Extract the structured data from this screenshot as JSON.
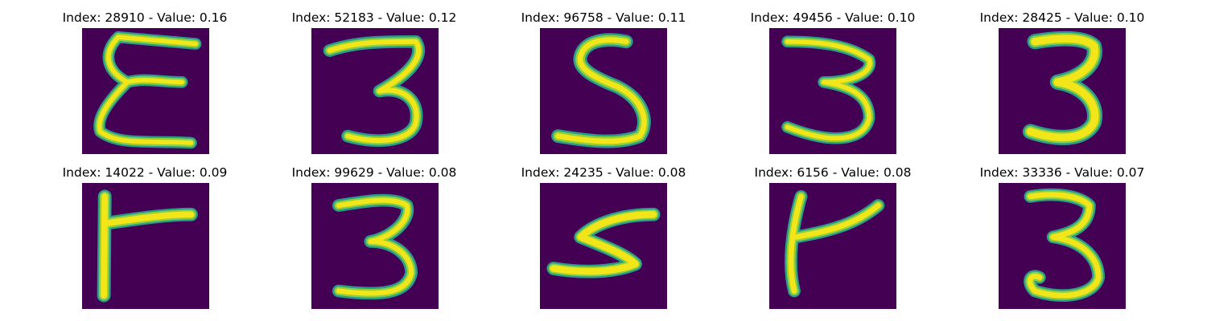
{
  "colors": {
    "background": "#440154",
    "stroke_edge": "#2a9c8a",
    "stroke_mid": "#8dcf3f",
    "stroke_core": "#f2e51a"
  },
  "grid": {
    "rows": 2,
    "columns": 5
  },
  "panels": [
    {
      "title": "Index: 28910 - Value: 0.16",
      "index": 28910,
      "value": 0.16,
      "glyph": "E"
    },
    {
      "title": "Index: 52183 - Value: 0.12",
      "index": 52183,
      "value": 0.12,
      "glyph": "3"
    },
    {
      "title": "Index: 96758 - Value: 0.11",
      "index": 96758,
      "value": 0.11,
      "glyph": "5"
    },
    {
      "title": "Index: 49456 - Value: 0.10",
      "index": 49456,
      "value": 0.1,
      "glyph": "3"
    },
    {
      "title": "Index: 28425 - Value: 0.10",
      "index": 28425,
      "value": 0.1,
      "glyph": "3"
    },
    {
      "title": "Index: 14022 - Value: 0.09",
      "index": 14022,
      "value": 0.09,
      "glyph": "T-rotated"
    },
    {
      "title": "Index: 99629 - Value: 0.08",
      "index": 99629,
      "value": 0.08,
      "glyph": "3"
    },
    {
      "title": "Index: 24235 - Value: 0.08",
      "index": 24235,
      "value": 0.08,
      "glyph": "5-rotated"
    },
    {
      "title": "Index: 6156 - Value: 0.08",
      "index": 6156,
      "value": 0.08,
      "glyph": "h-rotated"
    },
    {
      "title": "Index: 33336 - Value: 0.07",
      "index": 33336,
      "value": 0.07,
      "glyph": "3"
    }
  ]
}
